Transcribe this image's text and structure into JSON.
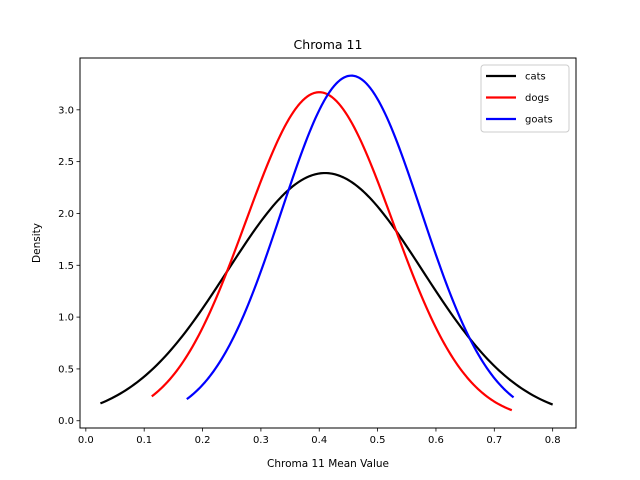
{
  "chart_data": {
    "type": "line",
    "title": "Chroma 11",
    "xlabel": "Chroma 11 Mean Value",
    "ylabel": "Density",
    "xlim": [
      -0.01,
      0.84
    ],
    "ylim": [
      -0.07,
      3.5
    ],
    "xticks": [
      "0.0",
      "0.1",
      "0.2",
      "0.3",
      "0.4",
      "0.5",
      "0.6",
      "0.7",
      "0.8"
    ],
    "yticks": [
      "0.0",
      "0.5",
      "1.0",
      "1.5",
      "2.0",
      "2.5",
      "3.0"
    ],
    "grid": false,
    "legend_position": "top-right",
    "series": [
      {
        "name": "cats",
        "color": "#000000",
        "distribution": "normal",
        "mean": 0.41,
        "peak_density": 2.39,
        "x_range": [
          0.025,
          0.8
        ],
        "x": [
          0.025,
          0.1,
          0.2,
          0.3,
          0.41,
          0.5,
          0.6,
          0.7,
          0.8
        ],
        "y": [
          0.17,
          0.43,
          1.12,
          1.92,
          2.39,
          2.15,
          1.3,
          0.55,
          0.15
        ]
      },
      {
        "name": "dogs",
        "color": "#ff0000",
        "distribution": "normal",
        "mean": 0.4,
        "peak_density": 3.17,
        "x_range": [
          0.113,
          0.73
        ],
        "x": [
          0.113,
          0.2,
          0.3,
          0.4,
          0.5,
          0.6,
          0.73
        ],
        "y": [
          0.25,
          0.95,
          2.4,
          3.17,
          2.4,
          0.95,
          0.1
        ]
      },
      {
        "name": "goats",
        "color": "#0000ff",
        "distribution": "normal",
        "mean": 0.455,
        "peak_density": 3.33,
        "x_range": [
          0.173,
          0.733
        ],
        "x": [
          0.173,
          0.25,
          0.35,
          0.455,
          0.55,
          0.65,
          0.733
        ],
        "y": [
          0.22,
          0.75,
          2.25,
          3.33,
          2.55,
          0.95,
          0.22
        ]
      }
    ]
  }
}
